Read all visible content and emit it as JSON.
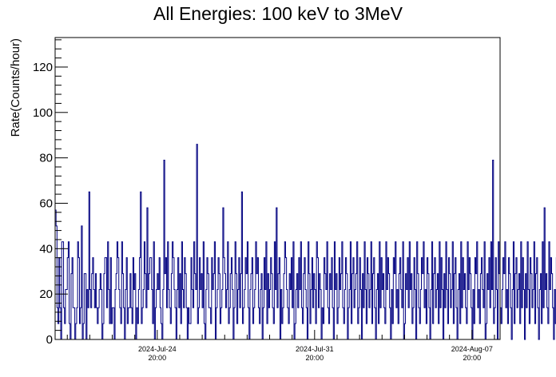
{
  "chart_data": {
    "type": "bar",
    "title": "All Energies:  100 keV to 3MeV",
    "xlabel": "",
    "ylabel": "Rate(Counts/hour)",
    "xlim": [
      "2024-07-20 07:00",
      "2024-08-09 02:00"
    ],
    "ylim": [
      0,
      133
    ],
    "bin_width": "1 hour",
    "y_ticks": [
      0,
      20,
      40,
      60,
      80,
      100,
      120
    ],
    "x_ticks": [
      {
        "date": "2024-Jul-24",
        "time": "20:00"
      },
      {
        "date": "2024-Jul-31",
        "time": "20:00"
      },
      {
        "date": "2024-Aug-07",
        "time": "20:00"
      }
    ],
    "series": [
      {
        "color": "#000080",
        "style": "histogram",
        "start": "2024-07-20 07:00",
        "values": [
          57,
          50,
          14,
          7,
          36,
          14,
          0,
          43,
          43,
          14,
          7,
          22,
          22,
          36,
          43,
          7,
          0,
          29,
          36,
          14,
          14,
          0,
          7,
          14,
          43,
          36,
          7,
          14,
          50,
          0,
          7,
          29,
          29,
          0,
          22,
          14,
          65,
          22,
          14,
          29,
          36,
          22,
          14,
          29,
          14,
          7,
          14,
          22,
          29,
          22,
          0,
          7,
          29,
          36,
          36,
          14,
          43,
          22,
          7,
          36,
          7,
          14,
          14,
          0,
          22,
          29,
          43,
          36,
          22,
          14,
          7,
          43,
          29,
          14,
          0,
          22,
          36,
          7,
          14,
          14,
          29,
          14,
          7,
          36,
          22,
          29,
          0,
          14,
          7,
          22,
          36,
          65,
          7,
          14,
          22,
          43,
          29,
          14,
          58,
          22,
          29,
          36,
          36,
          22,
          7,
          43,
          0,
          14,
          22,
          29,
          22,
          36,
          14,
          7,
          0,
          22,
          79,
          29,
          36,
          14,
          43,
          22,
          14,
          7,
          29,
          43,
          36,
          22,
          14,
          0,
          22,
          36,
          14,
          29,
          7,
          43,
          22,
          14,
          36,
          29,
          14,
          0,
          14,
          7,
          7,
          36,
          22,
          14,
          43,
          29,
          22,
          86,
          7,
          14,
          36,
          22,
          29,
          14,
          43,
          7,
          0,
          22,
          36,
          29,
          14,
          14,
          7,
          36,
          22,
          29,
          43,
          0,
          14,
          22,
          36,
          29,
          7,
          14,
          22,
          58,
          36,
          29,
          14,
          22,
          43,
          7,
          14,
          29,
          36,
          22,
          0,
          14,
          43,
          29,
          7,
          22,
          36,
          14,
          29,
          65,
          7,
          14,
          22,
          36,
          29,
          43,
          14,
          0,
          22,
          29,
          36,
          7,
          14,
          22,
          43,
          29,
          36,
          14,
          7,
          22,
          29,
          0,
          14,
          36,
          22,
          43,
          7,
          29,
          14,
          22,
          36,
          29,
          14,
          7,
          43,
          22,
          58,
          14,
          29,
          36,
          0,
          22,
          7,
          14,
          29,
          43,
          36,
          22,
          14,
          7,
          29,
          22,
          36,
          14,
          43,
          0,
          7,
          22,
          29,
          14,
          36,
          22,
          43,
          14,
          7,
          29,
          36,
          22,
          14,
          0,
          43,
          29,
          7,
          22,
          36,
          14,
          29,
          22,
          7,
          43,
          36,
          14,
          29,
          22,
          0,
          14,
          7,
          36,
          29,
          22,
          43,
          14,
          7,
          29,
          22,
          36,
          14,
          0,
          43,
          22,
          29,
          7,
          14,
          36,
          22,
          29,
          43,
          14,
          7,
          22,
          36,
          29,
          0,
          14,
          22,
          43,
          7,
          29,
          36,
          14,
          22,
          29,
          43,
          7,
          14,
          36,
          22,
          0,
          29,
          14,
          43,
          22,
          7,
          36,
          29,
          14,
          22,
          43,
          7,
          29,
          36,
          14,
          0,
          22,
          29,
          7,
          43,
          14,
          36,
          22,
          29,
          14,
          7,
          43,
          22,
          36,
          29,
          14,
          0,
          22,
          7,
          36,
          29,
          43,
          14,
          22,
          7,
          29,
          36,
          22,
          14,
          43,
          0,
          7,
          29,
          22,
          36,
          14,
          43,
          22,
          29,
          7,
          14,
          36,
          22,
          0,
          43,
          29,
          14,
          7,
          22,
          36,
          29,
          43,
          14,
          22,
          7,
          36,
          29,
          14,
          0,
          22,
          43,
          7,
          29,
          36,
          14,
          22,
          29,
          7,
          43,
          14,
          36,
          22,
          0,
          29,
          14,
          43,
          22,
          7,
          36,
          29,
          14,
          22,
          43,
          7,
          29,
          36,
          14,
          0,
          22,
          29,
          7,
          43,
          14,
          36,
          22,
          29,
          14,
          7,
          43,
          22,
          36,
          29,
          14,
          0,
          22,
          7,
          36,
          29,
          43,
          14,
          22,
          7,
          29,
          36,
          22,
          14,
          43,
          0,
          7,
          29,
          22,
          36,
          14,
          43,
          22,
          79,
          7,
          14,
          36,
          22,
          0,
          43,
          29,
          14,
          7,
          22,
          36,
          29,
          43,
          14,
          22,
          7,
          36,
          29,
          14,
          0,
          22,
          43,
          7,
          29,
          36,
          14,
          22,
          29,
          7,
          43,
          14,
          36,
          22,
          0,
          29,
          14,
          43,
          22,
          7,
          36,
          29,
          14,
          22,
          43,
          7,
          29,
          36,
          14,
          0,
          22,
          29,
          7,
          43,
          14,
          58,
          22,
          29,
          14,
          7,
          43,
          22,
          36,
          29,
          14,
          0,
          22,
          7,
          36,
          29,
          43,
          14,
          22,
          7,
          29,
          36,
          22,
          14,
          43
        ]
      }
    ]
  }
}
